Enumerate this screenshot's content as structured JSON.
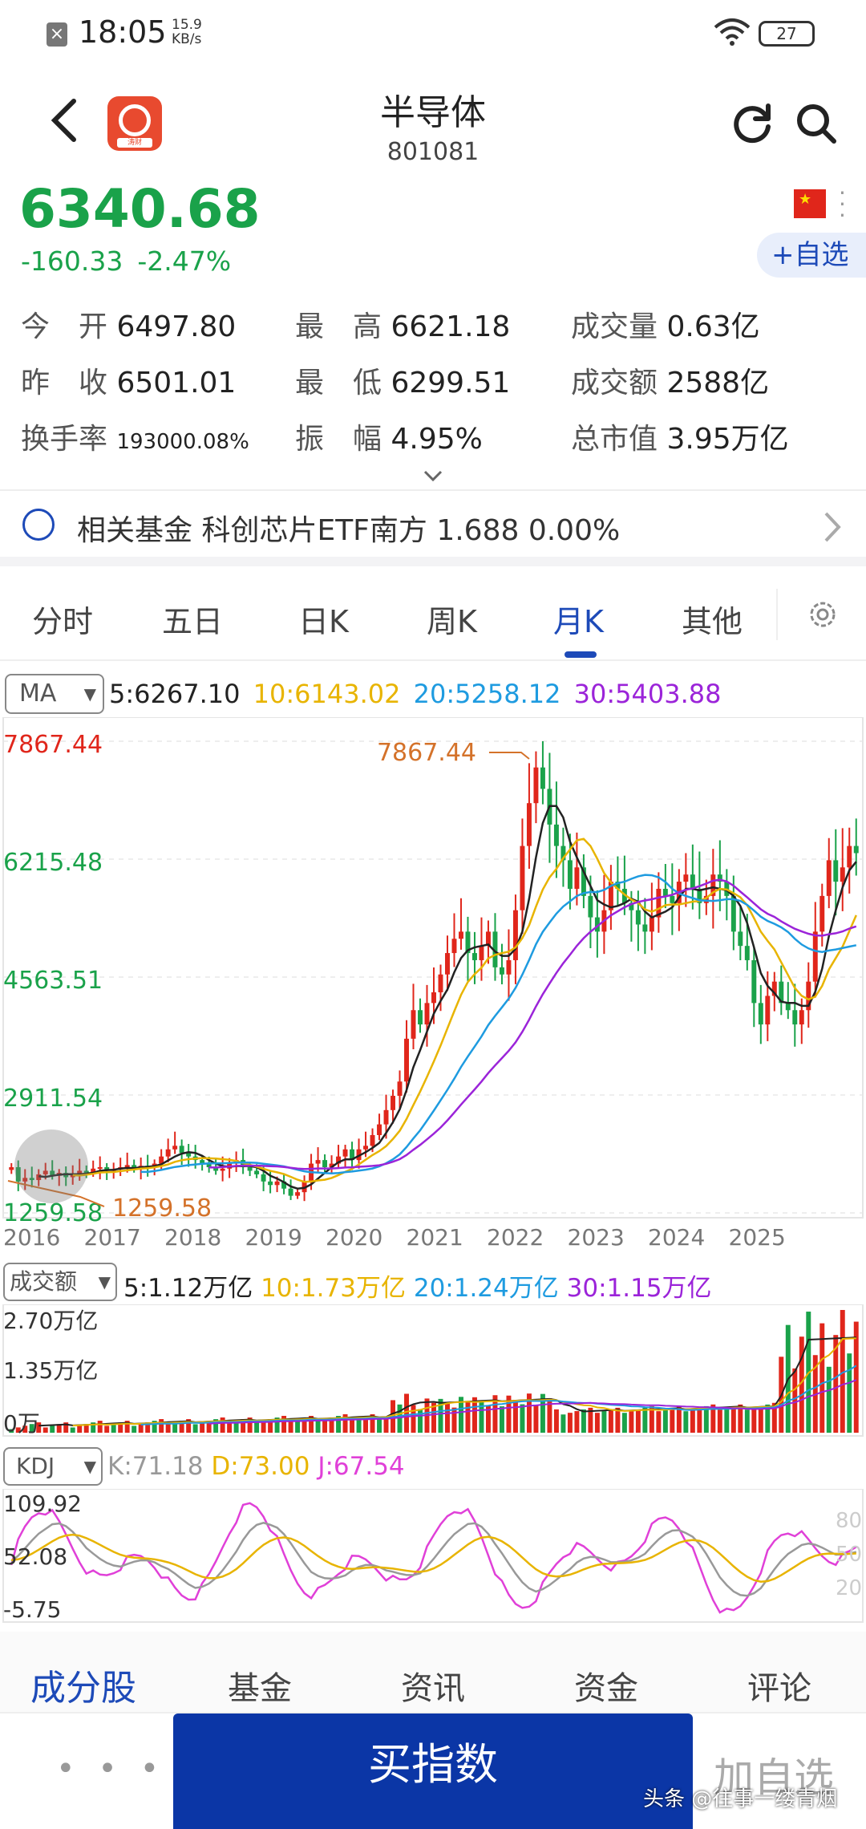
{
  "status_bar": {
    "time": "18:05",
    "speed_value": "15.9",
    "speed_unit": "KB/s",
    "battery": "27"
  },
  "header": {
    "title": "半导体",
    "code": "801081",
    "logo_tag": "涛财"
  },
  "quote": {
    "price": "6340.68",
    "change": "-160.33",
    "change_pct": "-2.47%",
    "add_fav_label": "+自选",
    "colors": {
      "down": "#1aa24a",
      "up": "#e0261b",
      "accent": "#1d4ab8"
    }
  },
  "stats": [
    {
      "key": "今　开",
      "value": "6497.80"
    },
    {
      "key": "最　高",
      "value": "6621.18"
    },
    {
      "key": "成交量",
      "value": "0.63亿"
    },
    {
      "key": "昨　收",
      "value": "6501.01"
    },
    {
      "key": "最　低",
      "value": "6299.51"
    },
    {
      "key": "成交额",
      "value": "2588亿"
    },
    {
      "key": "换手率",
      "value": "193000.08%"
    },
    {
      "key": "振　幅",
      "value": "4.95%"
    },
    {
      "key": "总市值",
      "value": "3.95万亿"
    }
  ],
  "fund": {
    "text": "相关基金 科创芯片ETF南方 1.688 0.00%"
  },
  "tabs": [
    "分时",
    "五日",
    "日K",
    "周K",
    "月K",
    "其他"
  ],
  "active_tab": "月K",
  "ma": {
    "selector": "MA",
    "values": [
      {
        "label": "5:6267.10",
        "color": "#222222"
      },
      {
        "label": "10:6143.02",
        "color": "#e8b400"
      },
      {
        "label": "20:5258.12",
        "color": "#1e9be0"
      },
      {
        "label": "30:5403.88",
        "color": "#9b24d9"
      }
    ]
  },
  "chart_data": [
    {
      "type": "candlestick",
      "title": "",
      "y_ticks": [
        "7867.44",
        "6215.48",
        "4563.51",
        "2911.54",
        "1259.58"
      ],
      "x_ticks": [
        "2016",
        "2017",
        "2018",
        "2019",
        "2020",
        "2021",
        "2022",
        "2023",
        "2024",
        "2025"
      ],
      "ylim": [
        1259.58,
        7867.44
      ],
      "max_label": "7867.44",
      "min_label": "1259.58",
      "close_approx": [
        1900,
        1700,
        1750,
        1720,
        1800,
        1850,
        1780,
        1820,
        1760,
        1800,
        1850,
        1820,
        1880,
        1900,
        1850,
        1870,
        1900,
        1930,
        1880,
        1920,
        1900,
        1950,
        2050,
        2150,
        2200,
        2100,
        2050,
        2000,
        1950,
        1900,
        1850,
        1880,
        1950,
        2000,
        1900,
        1850,
        1800,
        1700,
        1650,
        1700,
        1600,
        1500,
        1550,
        1700,
        1950,
        2000,
        1900,
        1950,
        2050,
        2150,
        2000,
        2150,
        2200,
        2350,
        2500,
        2700,
        2900,
        3100,
        3700,
        4100,
        3900,
        4200,
        4350,
        4600,
        4900,
        5100,
        5200,
        4900,
        4800,
        5000,
        5200,
        4700,
        4600,
        4800,
        5500,
        6400,
        7000,
        7500,
        7200,
        6700,
        6400,
        6200,
        5800,
        6100,
        5700,
        5400,
        5200,
        5500,
        5900,
        5800,
        5600,
        5500,
        5300,
        5200,
        5400,
        5800,
        5700,
        5600,
        5900,
        6000,
        5800,
        5600,
        5700,
        6000,
        5900,
        5700,
        5200,
        5000,
        4800,
        4200,
        3900,
        4300,
        4500,
        4200,
        4100,
        3900,
        4100,
        4500,
        5200,
        5700,
        6200,
        5900,
        6100,
        6400,
        6300
      ]
    },
    {
      "type": "bar",
      "title": "",
      "ma_labels": [
        {
          "label": "5:1.12万亿",
          "color": "#222222"
        },
        {
          "label": "10:1.73万亿",
          "color": "#e8b400"
        },
        {
          "label": "20:1.24万亿",
          "color": "#1e9be0"
        },
        {
          "label": "30:1.15万亿",
          "color": "#9b24d9"
        }
      ],
      "selector": "成交额",
      "y_ticks": [
        "2.70万亿",
        "1.35万亿",
        "0万"
      ],
      "ylim": [
        0,
        2.7
      ]
    },
    {
      "type": "line",
      "title": "",
      "selector": "KDJ",
      "series_labels": [
        {
          "label": "K:71.18",
          "color": "#999999"
        },
        {
          "label": "D:73.00",
          "color": "#e8b400"
        },
        {
          "label": "J:67.54",
          "color": "#e040d8"
        }
      ],
      "y_ticks": [
        "109.92",
        "52.08",
        "-5.75"
      ],
      "right_ticks": [
        "80",
        "50",
        "20"
      ],
      "ylim": [
        -5.75,
        109.92
      ]
    }
  ],
  "bottom_tabs": [
    "成分股",
    "基金",
    "资讯",
    "资金",
    "评论"
  ],
  "active_bottom_tab": "成分股",
  "actions": {
    "more": "• • •",
    "buy": "买指数",
    "add_watch": "加自选"
  },
  "watermark": "头条 @往事一缕青烟"
}
